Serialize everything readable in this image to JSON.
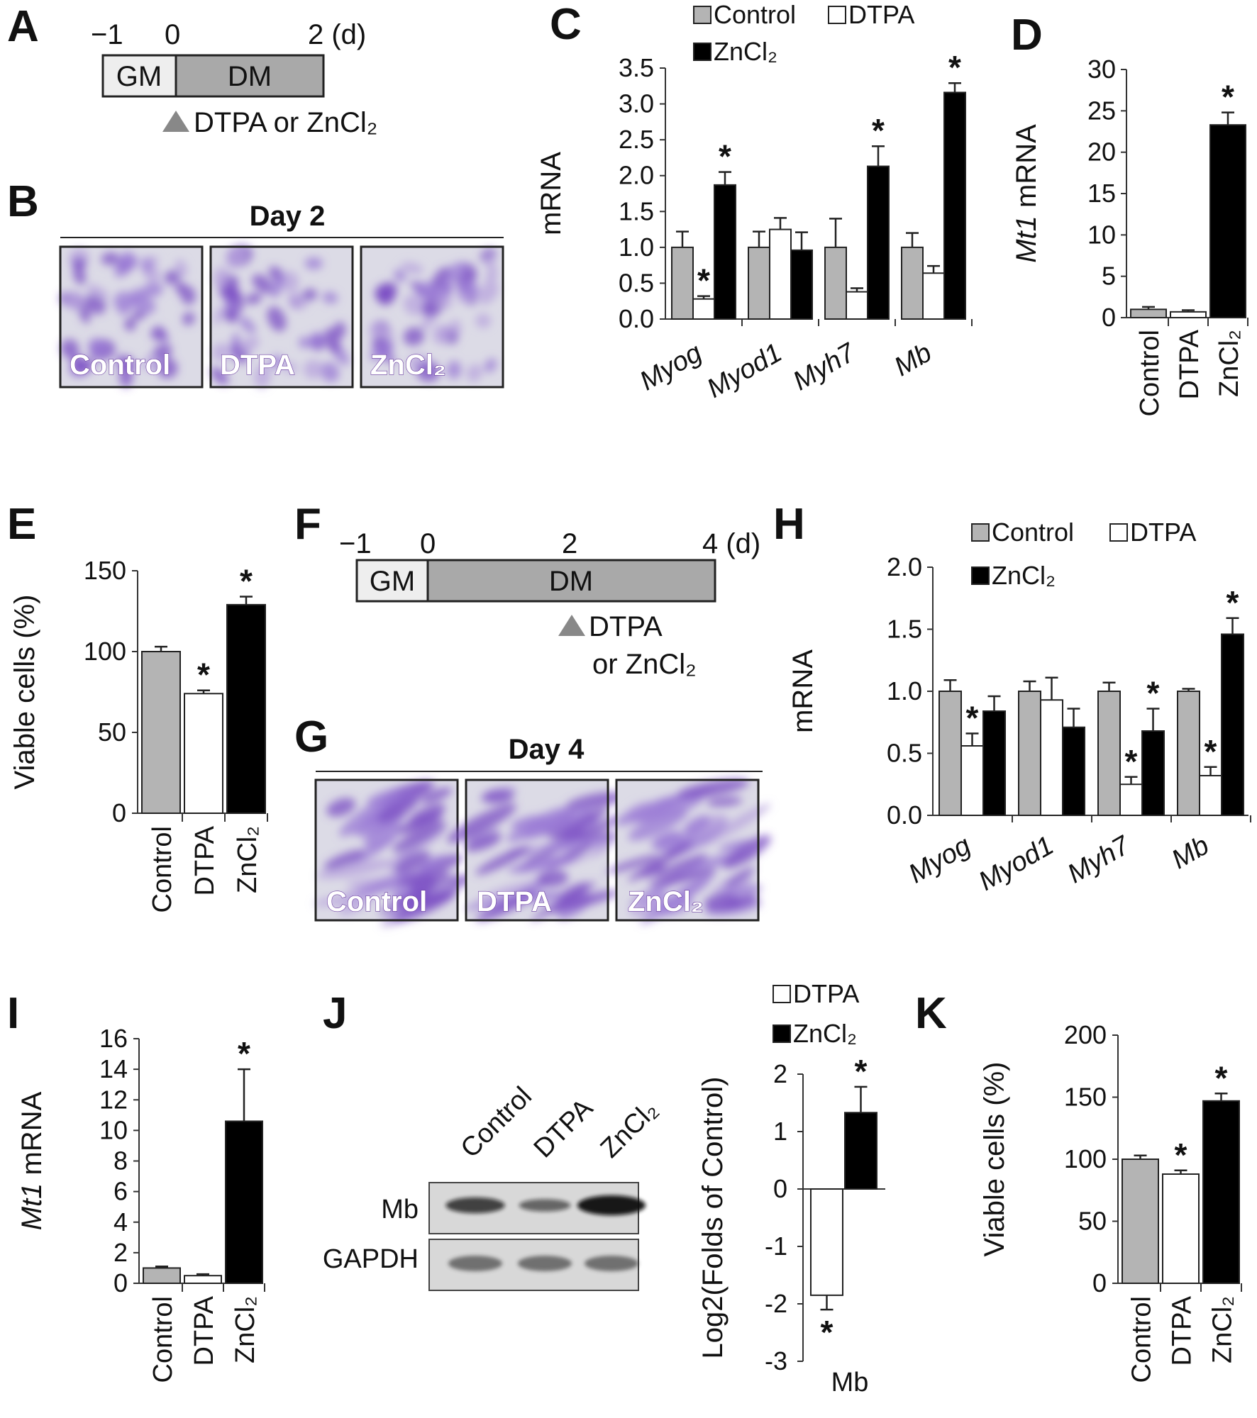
{
  "colors": {
    "control": "#b4b4b4",
    "dtpa": "#ffffff",
    "zncl2": "#000000",
    "timeline_gm": "#eeeeee",
    "timeline_dm": "#a9a9a9",
    "micrograph_stain": "#8a5cc8"
  },
  "panels": {
    "A": {
      "letter": "A",
      "ticks": [
        "−1",
        "0",
        "2 (d)"
      ],
      "gm": "GM",
      "dm": "DM",
      "treatment": "DTPA or ZnCl₂",
      "marker_icon": "gray-triangle-icon"
    },
    "B": {
      "letter": "B",
      "title": "Day 2",
      "images": [
        "Control",
        "DTPA",
        "ZnCl₂"
      ]
    },
    "C": {
      "letter": "C"
    },
    "D": {
      "letter": "D"
    },
    "E": {
      "letter": "E"
    },
    "F": {
      "letter": "F",
      "ticks": [
        "−1",
        "0",
        "2",
        "4 (d)"
      ],
      "gm": "GM",
      "dm": "DM",
      "treatment_line1": "DTPA",
      "treatment_line2": "or ZnCl₂",
      "marker_icon": "gray-triangle-icon"
    },
    "G": {
      "letter": "G",
      "title": "Day 4",
      "images": [
        "Control",
        "DTPA",
        "ZnCl₂"
      ]
    },
    "H": {
      "letter": "H"
    },
    "I": {
      "letter": "I"
    },
    "J": {
      "letter": "J",
      "blot_lanes": [
        "Control",
        "DTPA",
        "ZnCl₂"
      ],
      "blot_rows": [
        "Mb",
        "GAPDH"
      ],
      "mb_band_intensity": [
        0.65,
        0.35,
        1.0
      ],
      "gapdh_band_intensity": [
        0.55,
        0.55,
        0.55
      ]
    },
    "K": {
      "letter": "K"
    }
  },
  "chart_data": [
    {
      "panel": "C",
      "type": "bar",
      "categories": [
        "Myog",
        "Myod1",
        "Myh7",
        "Mb"
      ],
      "series": [
        {
          "name": "Control",
          "values": [
            1.0,
            1.0,
            1.0,
            1.0
          ],
          "errors": [
            0.22,
            0.22,
            0.4,
            0.2
          ]
        },
        {
          "name": "DTPA",
          "values": [
            0.28,
            1.25,
            0.38,
            0.64
          ],
          "errors": [
            0.04,
            0.16,
            0.05,
            0.1
          ]
        },
        {
          "name": "ZnCl₂",
          "values": [
            1.87,
            0.96,
            2.13,
            3.16
          ],
          "errors": [
            0.18,
            0.25,
            0.28,
            0.13
          ]
        }
      ],
      "significance": [
        [
          "Myog",
          "DTPA"
        ],
        [
          "Myog",
          "ZnCl₂"
        ],
        [
          "Myh7",
          "ZnCl₂"
        ],
        [
          "Mb",
          "ZnCl₂"
        ]
      ],
      "ylabel": "mRNA",
      "ylim": [
        0,
        3.5
      ],
      "yticks": [
        "0.0",
        "0.5",
        "1.0",
        "1.5",
        "2.0",
        "2.5",
        "3.0",
        "3.5"
      ],
      "legend": [
        "Control",
        "DTPA",
        "ZnCl₂"
      ],
      "legend_position": "top"
    },
    {
      "panel": "D",
      "type": "bar",
      "categories": [
        "Control",
        "DTPA",
        "ZnCl₂"
      ],
      "values": [
        1.0,
        0.7,
        23.3
      ],
      "errors": [
        0.3,
        0.2,
        1.5
      ],
      "significance": [
        "ZnCl₂"
      ],
      "ylabel_italic": "Mt1",
      "ylabel": "mRNA",
      "ylim": [
        0,
        30
      ],
      "yticks": [
        "0",
        "5",
        "10",
        "15",
        "20",
        "25",
        "30"
      ]
    },
    {
      "panel": "E",
      "type": "bar",
      "categories": [
        "Control",
        "DTPA",
        "ZnCl₂"
      ],
      "values": [
        100,
        74,
        129
      ],
      "errors": [
        3,
        2,
        5
      ],
      "significance": [
        "DTPA",
        "ZnCl₂"
      ],
      "ylabel": "Viable cells (%)",
      "ylim": [
        0,
        150
      ],
      "yticks": [
        "0",
        "50",
        "100",
        "150"
      ]
    },
    {
      "panel": "H",
      "type": "bar",
      "categories": [
        "Myog",
        "Myod1",
        "Myh7",
        "Mb"
      ],
      "series": [
        {
          "name": "Control",
          "values": [
            1.0,
            1.0,
            1.0,
            1.0
          ],
          "errors": [
            0.09,
            0.08,
            0.07,
            0.02
          ]
        },
        {
          "name": "DTPA",
          "values": [
            0.56,
            0.93,
            0.25,
            0.32
          ],
          "errors": [
            0.1,
            0.18,
            0.06,
            0.07
          ]
        },
        {
          "name": "ZnCl₂",
          "values": [
            0.84,
            0.71,
            0.68,
            1.46
          ],
          "errors": [
            0.12,
            0.15,
            0.18,
            0.13
          ]
        }
      ],
      "significance": [
        [
          "Myog",
          "DTPA"
        ],
        [
          "Myh7",
          "DTPA"
        ],
        [
          "Myh7",
          "ZnCl₂"
        ],
        [
          "Mb",
          "DTPA"
        ],
        [
          "Mb",
          "ZnCl₂"
        ]
      ],
      "ylabel": "mRNA",
      "ylim": [
        0,
        2.0
      ],
      "yticks": [
        "0.0",
        "0.5",
        "1.0",
        "1.5",
        "2.0"
      ],
      "legend": [
        "Control",
        "DTPA",
        "ZnCl₂"
      ],
      "legend_position": "top"
    },
    {
      "panel": "I",
      "type": "bar",
      "categories": [
        "Control",
        "DTPA",
        "ZnCl₂"
      ],
      "values": [
        1.0,
        0.5,
        10.6
      ],
      "errors": [
        0.1,
        0.1,
        3.4
      ],
      "significance": [
        "ZnCl₂"
      ],
      "ylabel_italic": "Mt1",
      "ylabel": "mRNA",
      "ylim": [
        0,
        16
      ],
      "yticks": [
        "0",
        "2",
        "4",
        "6",
        "8",
        "10",
        "12",
        "14",
        "16"
      ]
    },
    {
      "panel": "J",
      "type": "bar",
      "categories": [
        "Mb"
      ],
      "series": [
        {
          "name": "DTPA",
          "values": [
            -1.85
          ],
          "errors": [
            0.25
          ]
        },
        {
          "name": "ZnCl₂",
          "values": [
            1.33
          ],
          "errors": [
            0.45
          ]
        }
      ],
      "significance": [
        [
          "Mb",
          "DTPA"
        ],
        [
          "Mb",
          "ZnCl₂"
        ]
      ],
      "ylabel": "Log2(Folds of Control)",
      "ylim": [
        -3,
        2
      ],
      "yticks": [
        "-3",
        "-2",
        "-1",
        "0",
        "1",
        "2"
      ],
      "legend": [
        "DTPA",
        "ZnCl₂"
      ],
      "legend_position": "top"
    },
    {
      "panel": "K",
      "type": "bar",
      "categories": [
        "Control",
        "DTPA",
        "ZnCl₂"
      ],
      "values": [
        100,
        88,
        147
      ],
      "errors": [
        3,
        3,
        6
      ],
      "significance": [
        "DTPA",
        "ZnCl₂"
      ],
      "ylabel": "Viable cells (%)",
      "ylim": [
        0,
        200
      ],
      "yticks": [
        "0",
        "50",
        "100",
        "150",
        "200"
      ]
    }
  ]
}
